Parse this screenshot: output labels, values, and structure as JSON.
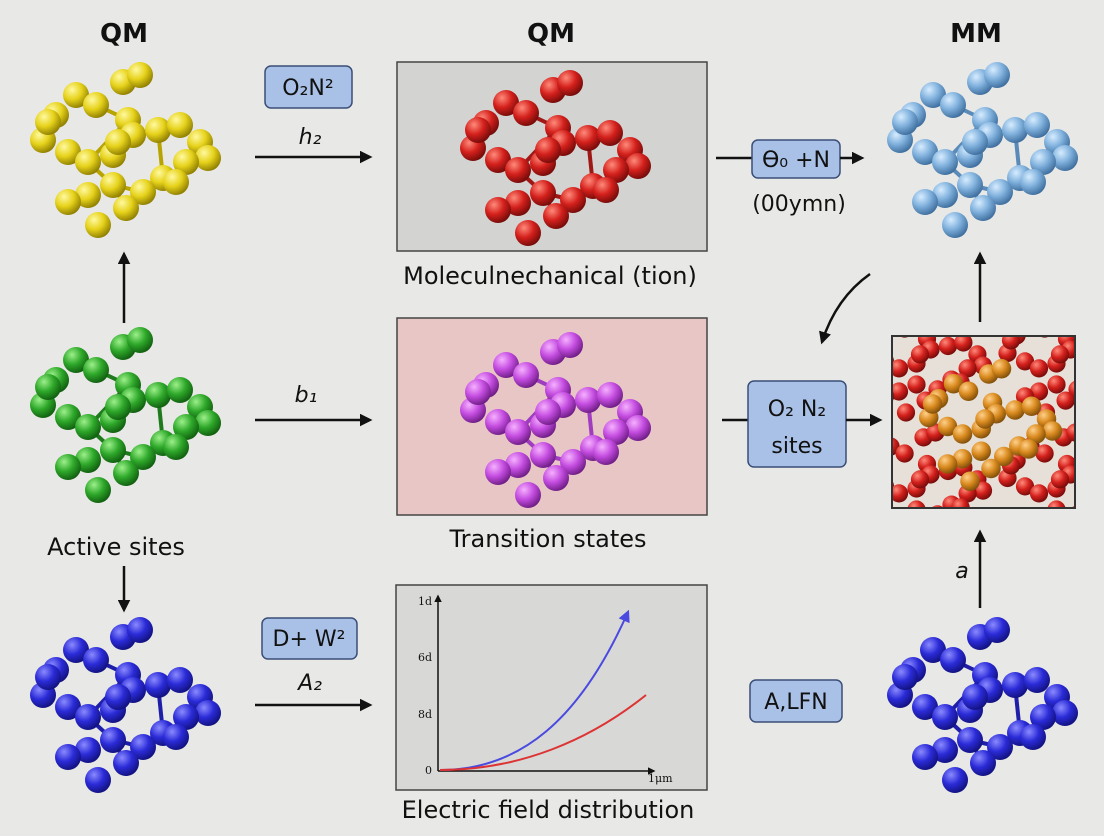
{
  "headers": [
    "QM",
    "QM",
    "MM"
  ],
  "boxes": {
    "top_left": "O₂N²",
    "top_right": "Ө₀ +N",
    "mid_right_line1": "O₂ N₂",
    "mid_right_line2": "sites",
    "bottom_left": "D+ W²",
    "bottom_right": "A,LFN"
  },
  "arrow_labels": {
    "top": "h₂",
    "top_right": "(00ymn)",
    "middle": "b₁",
    "bottom": "A₂",
    "right_up": "a"
  },
  "captions": {
    "top": "Moleculnechanical (tion)",
    "middle": "Transition states",
    "left": "Active sites",
    "bottom": "Electric field distribution"
  },
  "plot": {
    "y_labels": [
      "1d",
      "6d",
      "8d",
      "0"
    ],
    "x_label": "1μm"
  }
}
